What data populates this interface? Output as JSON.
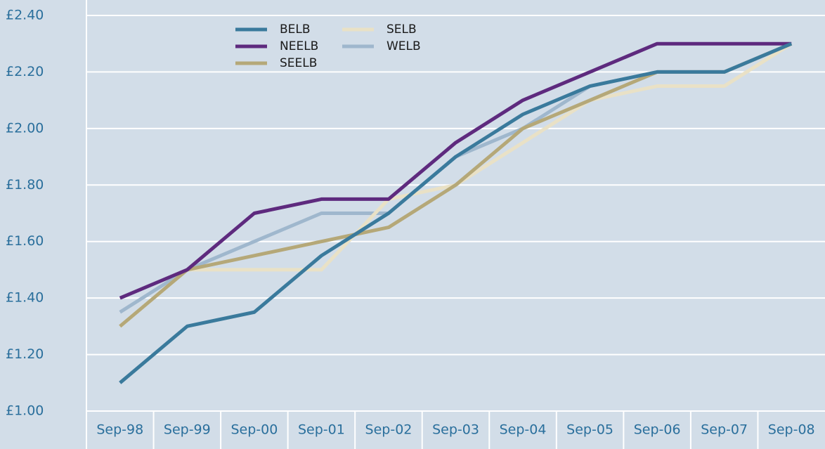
{
  "chart_data": {
    "type": "line",
    "categories": [
      "Sep-98",
      "Sep-99",
      "Sep-00",
      "Sep-01",
      "Sep-02",
      "Sep-03",
      "Sep-04",
      "Sep-05",
      "Sep-06",
      "Sep-07",
      "Sep-08"
    ],
    "series": [
      {
        "name": "BELB",
        "color": "#3a7a9c",
        "values": [
          1.1,
          1.3,
          1.35,
          1.55,
          1.7,
          1.9,
          2.05,
          2.15,
          2.2,
          2.2,
          2.3
        ]
      },
      {
        "name": "NEELB",
        "color": "#5e2a7e",
        "values": [
          1.4,
          1.5,
          1.7,
          1.75,
          1.75,
          1.95,
          2.1,
          2.2,
          2.3,
          2.3,
          2.3
        ]
      },
      {
        "name": "SEELB",
        "color": "#b5a878",
        "values": [
          1.3,
          1.5,
          1.55,
          1.6,
          1.65,
          1.8,
          2.0,
          2.1,
          2.2,
          2.2,
          2.3
        ]
      },
      {
        "name": "SELB",
        "color": "#e9e1c6",
        "values": [
          1.3,
          1.5,
          1.5,
          1.5,
          1.75,
          1.8,
          1.95,
          2.1,
          2.15,
          2.15,
          2.3
        ]
      },
      {
        "name": "WELB",
        "color": "#9fb7cd",
        "values": [
          1.35,
          1.5,
          1.6,
          1.7,
          1.7,
          1.9,
          2.0,
          2.15,
          2.2,
          2.2,
          2.3
        ]
      }
    ],
    "ylim": [
      1.0,
      2.4
    ],
    "yticks": [
      {
        "value": 1.0,
        "label": "£1.00"
      },
      {
        "value": 1.2,
        "label": "£1.20"
      },
      {
        "value": 1.4,
        "label": "£1.40"
      },
      {
        "value": 1.6,
        "label": "£1.60"
      },
      {
        "value": 1.8,
        "label": "£1.80"
      },
      {
        "value": 2.0,
        "label": "£2.00"
      },
      {
        "value": 2.2,
        "label": "£2.20"
      },
      {
        "value": 2.4,
        "label": "£2.40"
      }
    ],
    "grid": true
  }
}
